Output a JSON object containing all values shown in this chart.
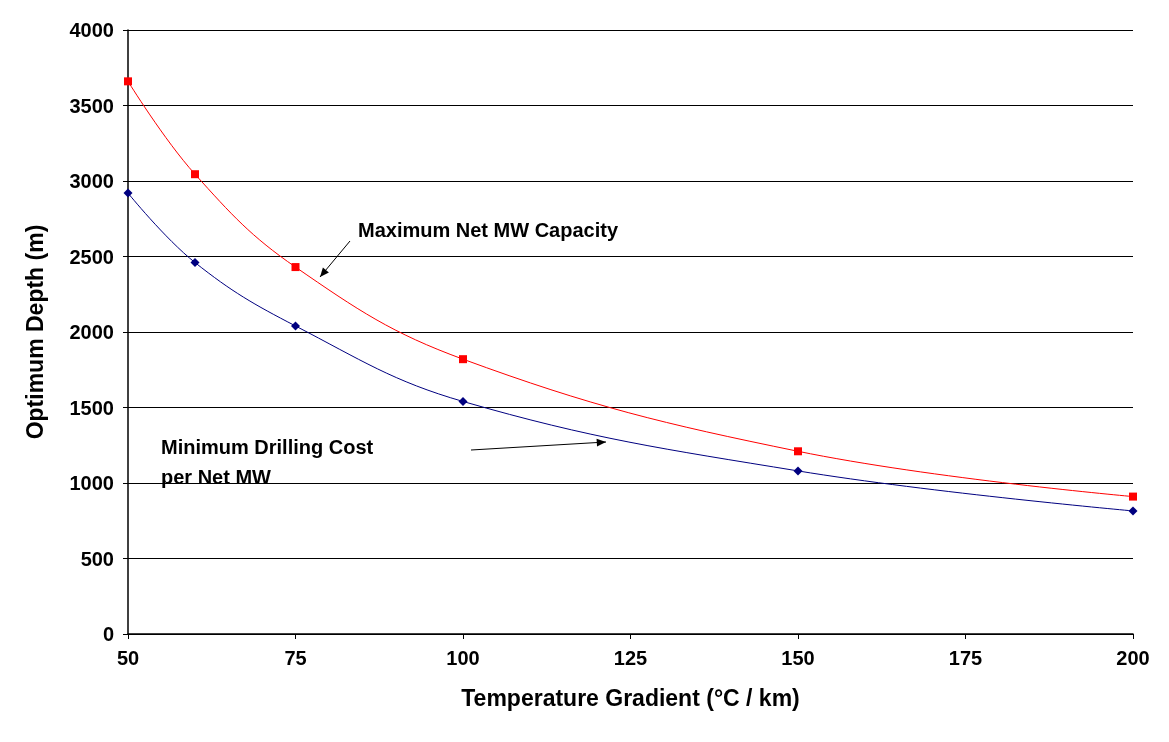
{
  "chart_data": {
    "type": "line",
    "xlabel": "Temperature Gradient (°C / km)",
    "ylabel": "Optimum Depth (m)",
    "xlim": [
      50,
      200
    ],
    "xticks": [
      50,
      75,
      100,
      125,
      150,
      175,
      200
    ],
    "ylim": [
      0,
      4000
    ],
    "yticks": [
      0,
      500,
      1000,
      1500,
      2000,
      2500,
      3000,
      3500,
      4000
    ],
    "grid": "y",
    "series": [
      {
        "x": [
          50,
          60,
          75,
          100,
          150,
          200
        ],
        "color": "#ff0000",
        "marker": "square",
        "values": [
          3660,
          3045,
          2430,
          1820,
          1210,
          910
        ]
      },
      {
        "x": [
          50,
          60,
          75,
          100,
          150,
          200
        ],
        "color": "#000080",
        "marker": "diamond",
        "values": [
          2920,
          2460,
          2040,
          1540,
          1080,
          815
        ]
      }
    ],
    "annotations": [
      "Maximum Net MW Capacity",
      "Minimum Drilling Cost\nper Net MW"
    ]
  }
}
